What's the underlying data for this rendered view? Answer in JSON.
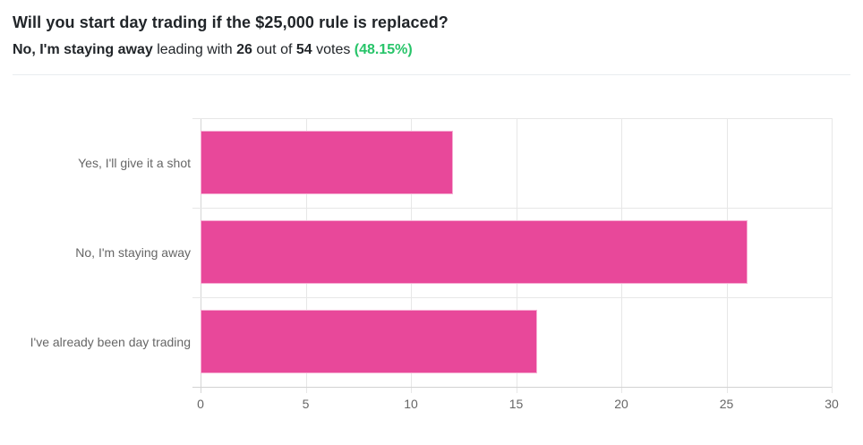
{
  "header": {
    "title": "Will you start day trading if the $25,000 rule is replaced?",
    "summary": {
      "leading_option": "No, I'm staying away",
      "leading_text": " leading with ",
      "leading_votes": "26",
      "out_of_text": " out of ",
      "total_votes": "54",
      "votes_text": " votes ",
      "percentage": "(48.15%)"
    },
    "colors": {
      "title_text": "#212529",
      "percentage_green": "#27c469",
      "divider": "#e9ecef"
    }
  },
  "chart_data": {
    "type": "bar",
    "orientation": "horizontal",
    "title": "",
    "xlabel": "",
    "ylabel": "",
    "categories": [
      "Yes, I'll give it a shot",
      "No, I'm staying away",
      "I've already been day trading"
    ],
    "values": [
      12,
      26,
      16
    ],
    "xlim": [
      0,
      30
    ],
    "x_ticks": [
      0,
      5,
      10,
      15,
      20,
      25,
      30
    ],
    "grid": true,
    "legend": "none",
    "bar_color": "#e8489a",
    "bar_border_color": "#f6aed3",
    "gridline_color": "#e7e7e7",
    "axis_line_color": "#d2d2d2",
    "label_color": "#666666"
  }
}
